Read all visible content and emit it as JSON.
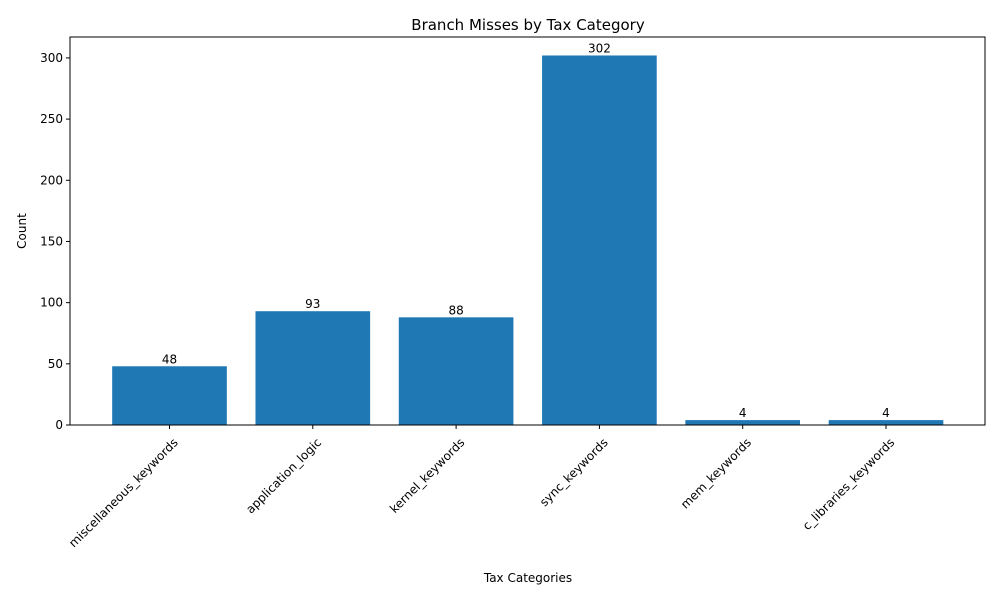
{
  "chart_data": {
    "type": "bar",
    "title": "Branch Misses by Tax Category",
    "xlabel": "Tax Categories",
    "ylabel": "Count",
    "categories": [
      "miscellaneous_keywords",
      "application_logic",
      "kernel_keywords",
      "sync_keywords",
      "mem_keywords",
      "c_libraries_keywords"
    ],
    "values": [
      48,
      93,
      88,
      302,
      4,
      4
    ],
    "ylim": [
      0,
      317.1
    ],
    "yticks": [
      0,
      50,
      100,
      150,
      200,
      250,
      300
    ],
    "grid": false,
    "bar_color": "#1f77b4",
    "data_labels": true
  }
}
